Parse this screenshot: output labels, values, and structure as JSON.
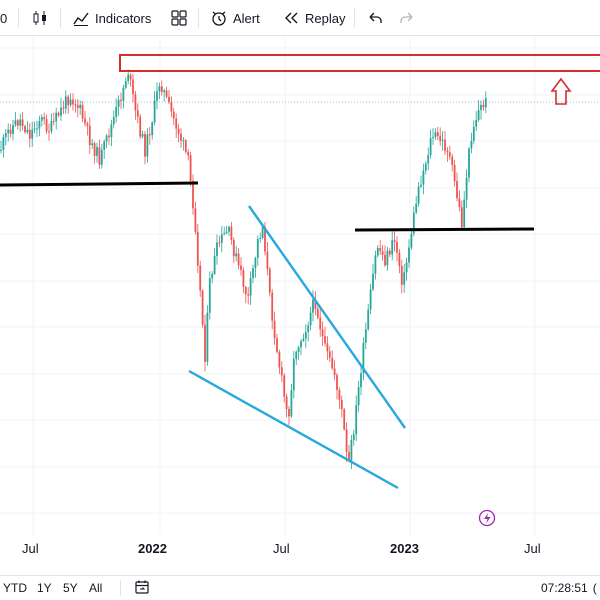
{
  "toolbar": {
    "indicators_label": "Indicators",
    "alert_label": "Alert",
    "replay_label": "Replay",
    "partial_left_char": "0",
    "icons": [
      "candlestick-icon",
      "indicators-icon",
      "layouts-icon",
      "alert-clock-icon",
      "replay-icon",
      "undo-icon",
      "redo-icon"
    ]
  },
  "chart": {
    "x_labels": [
      "Jul",
      "2022",
      "Jul",
      "2023",
      "Jul"
    ],
    "colors": {
      "up": "#26a69a",
      "down": "#ef5350",
      "resistance_box": "#d32f2f",
      "arrow": "#d32f2f",
      "trendline": "#29a8db",
      "support": "#000000",
      "price_line": "#8fc7d1",
      "gridline": "#f0f3fa",
      "flash_icon": "#9c27b0"
    },
    "annotations": [
      "resistance-zone",
      "up-arrow",
      "support-line-left",
      "support-line-right",
      "falling-wedge-upper",
      "falling-wedge-lower"
    ]
  },
  "bottom": {
    "ranges": [
      "YTD",
      "1Y",
      "5Y",
      "All"
    ],
    "clock": "07:28:51",
    "clock_suffix": "(",
    "icons": [
      "date-range-icon"
    ]
  }
}
